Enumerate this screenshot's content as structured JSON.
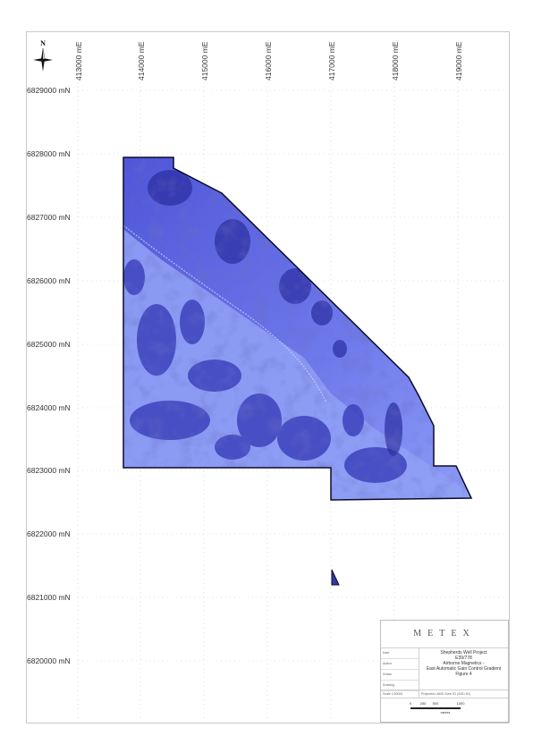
{
  "map": {
    "x_labels": [
      "413000 mE",
      "414000 mE",
      "415000 mE",
      "416000 mE",
      "417000 mE",
      "418000 mE",
      "419000 mE"
    ],
    "y_labels": [
      "6829000 mN",
      "6828000 mN",
      "6827000 mN",
      "6826000 mN",
      "6825000 mN",
      "6824000 mN",
      "6823000 mN",
      "6822000 mN",
      "6821000 mN",
      "6820000 mN"
    ],
    "north_label": "N",
    "colors": {
      "light": "#8c9cf5",
      "mid": "#5a62d8",
      "dark": "#2a2ea0",
      "outline": "#0b0b2a"
    }
  },
  "title_block": {
    "logo": "METEX",
    "title_lines": [
      "Shepherds Well Project",
      "E39/778",
      "Airborne Magnetics -",
      "East Automatic Gain Control Gradient",
      "Figure 4"
    ],
    "field_labels": [
      "Date",
      "Author",
      "Drawn",
      "Drawing"
    ],
    "scale_label": "Scale 1:50000",
    "projection": "Projection: AMG Zone 51 (AGD 84)",
    "scale_ticks": [
      "0",
      "250",
      "500",
      "1000"
    ],
    "scale_unit": "metres"
  }
}
